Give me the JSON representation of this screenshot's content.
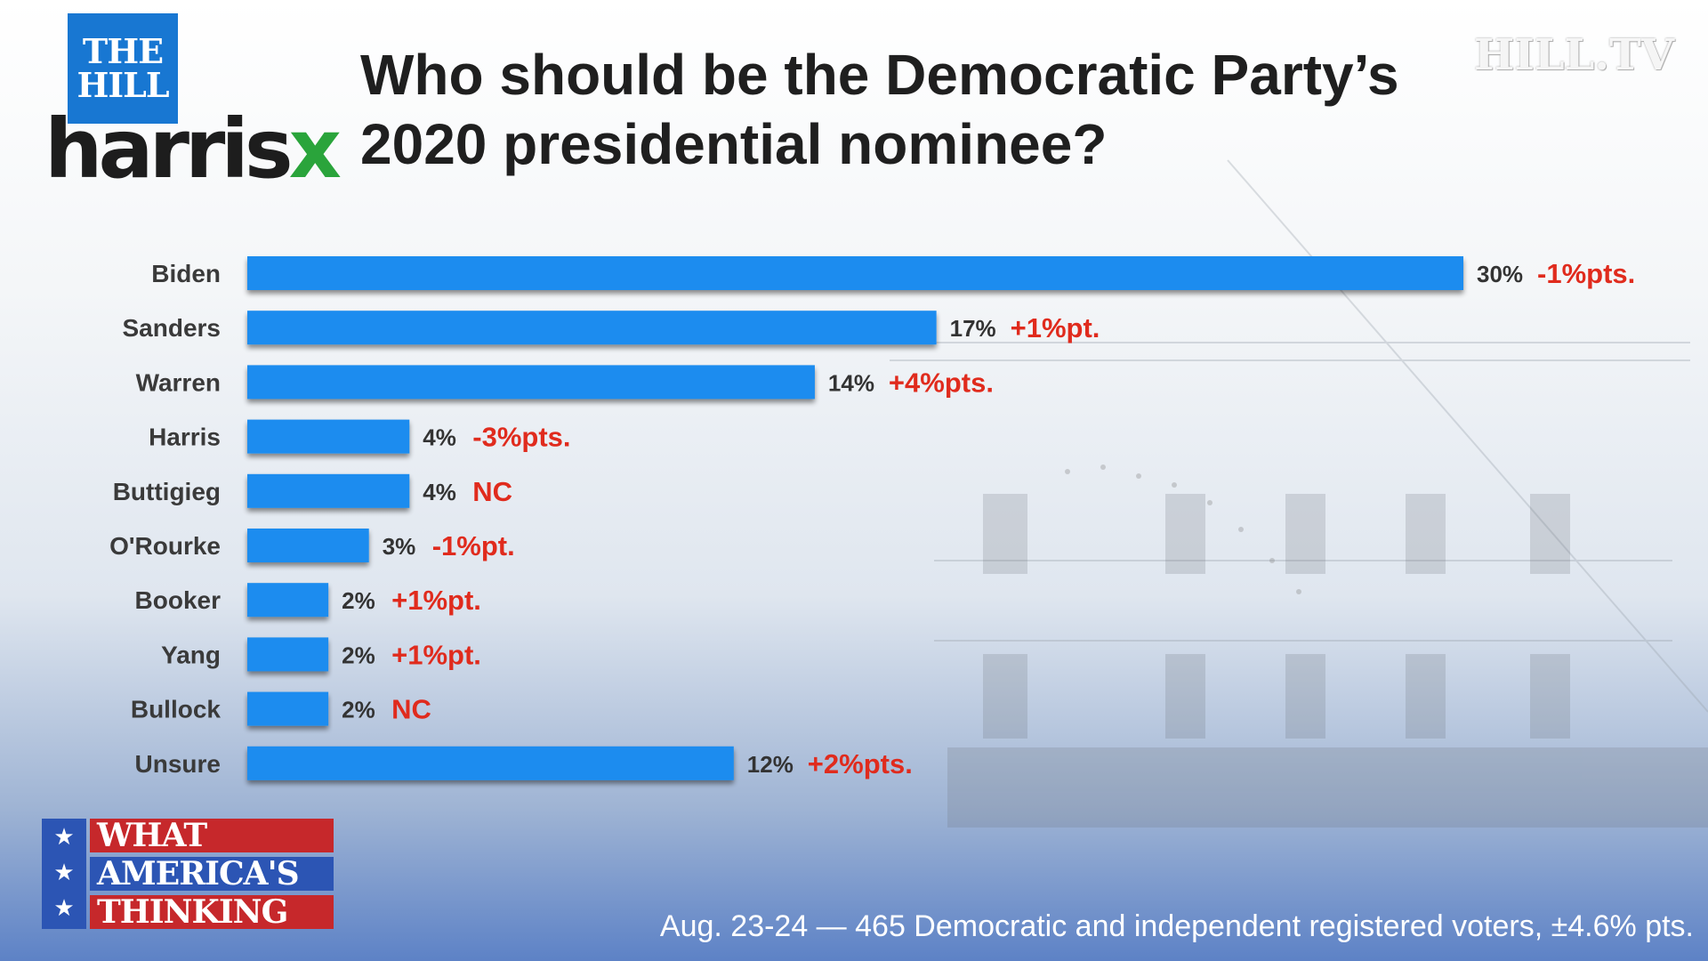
{
  "branding": {
    "hill_logo_line1": "THE",
    "hill_logo_line2": "HILL",
    "harrisx_main": "harris",
    "harrisx_x": "x",
    "hilltv": "HILL.TV",
    "wat_line1": "WHAT",
    "wat_line2": "AMERICA'S",
    "wat_line3": "THINKING",
    "star_glyph": "★"
  },
  "colors": {
    "bar": "#1a8cef",
    "change": "#e02b1d",
    "value": "#333333",
    "label": "#3a3a3a"
  },
  "chart_data": {
    "type": "bar",
    "orientation": "horizontal",
    "title_line1": "Who should be the Democratic Party’s",
    "title_line2": "2020 presidential nominee?",
    "categories": [
      "Biden",
      "Sanders",
      "Warren",
      "Harris",
      "Buttigieg",
      "O'Rourke",
      "Booker",
      "Yang",
      "Bullock",
      "Unsure"
    ],
    "values": [
      30,
      17,
      14,
      4,
      4,
      3,
      2,
      2,
      2,
      12
    ],
    "value_labels": [
      "30%",
      "17%",
      "14%",
      "4%",
      "4%",
      "3%",
      "2%",
      "2%",
      "2%",
      "12%"
    ],
    "change_labels": [
      "-1%pts.",
      "+1%pt.",
      "+4%pts.",
      "-3%pts.",
      "NC",
      "-1%pt.",
      "+1%pt.",
      "+1%pt.",
      "NC",
      "+2%pts."
    ],
    "xlim": [
      0,
      30
    ],
    "unit": "%"
  },
  "footnote": "Aug. 23-24 — 465 Democratic and independent registered voters, ±4.6% pts."
}
